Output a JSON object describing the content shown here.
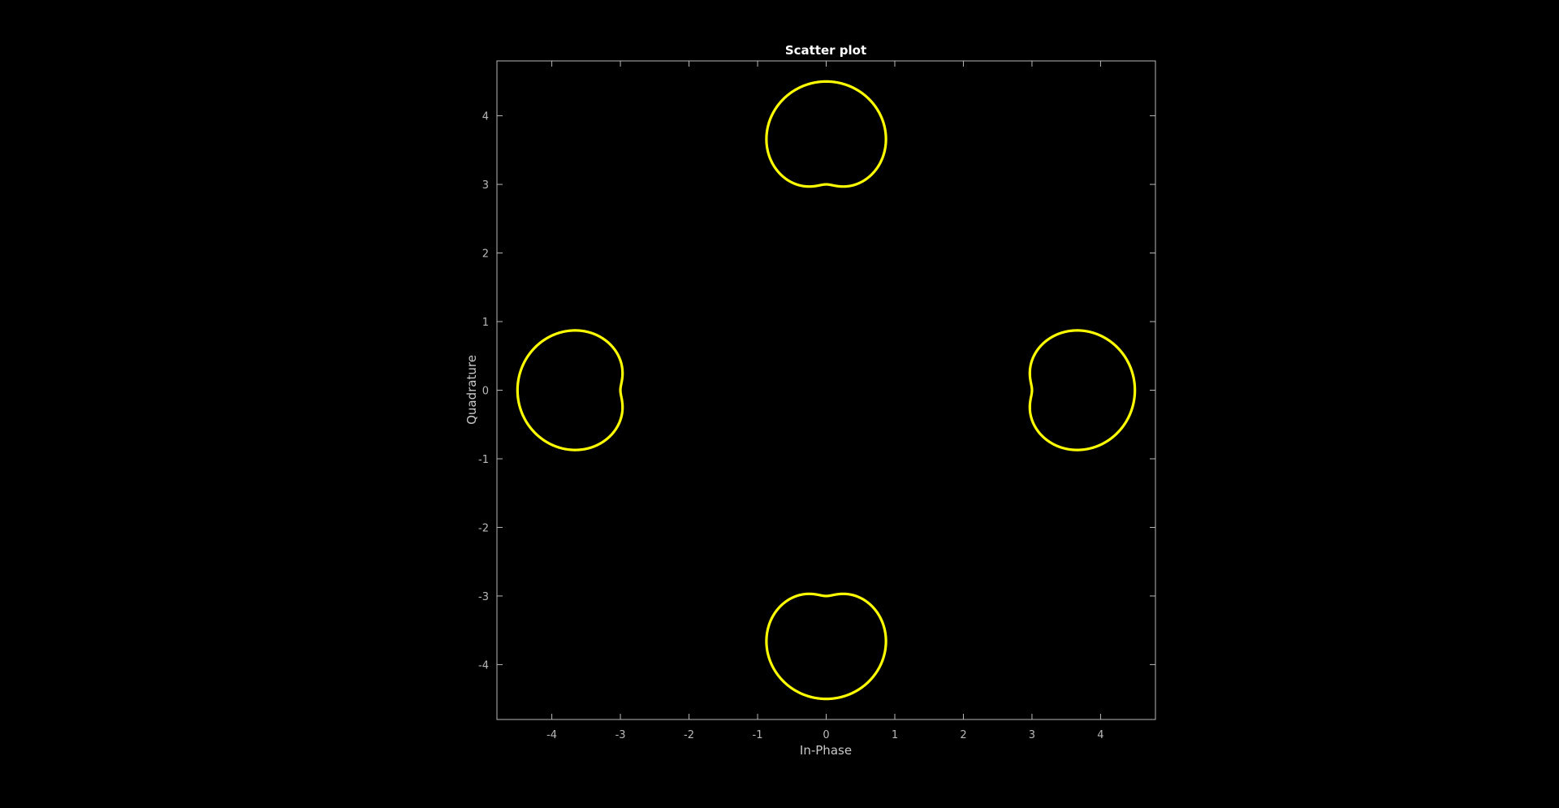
{
  "chart_data": {
    "type": "scatter",
    "title": "Scatter plot",
    "xlabel": "In-Phase",
    "ylabel": "Quadrature",
    "xlim": [
      -4.8,
      4.8
    ],
    "ylim": [
      -4.8,
      4.8
    ],
    "xticks": [
      -4,
      -3,
      -2,
      -1,
      0,
      1,
      2,
      3,
      4
    ],
    "yticks": [
      -4,
      -3,
      -2,
      -1,
      0,
      1,
      2,
      3,
      4
    ],
    "grid": false,
    "background_color": "#000000",
    "axes_color": "#b9b9b9",
    "series": [
      {
        "marker_color": "#ffff00",
        "shape": "limacon trace around constellation point",
        "clusters": [
          {
            "center": [
              3.5,
              0
            ],
            "outer_extent": [
              4.5,
              0
            ],
            "inner_loop_extent": [
              2.9,
              3.1
            ]
          },
          {
            "center": [
              0,
              3.5
            ],
            "outer_extent": [
              0,
              4.5
            ],
            "inner_loop_extent": [
              2.9,
              3.1
            ]
          },
          {
            "center": [
              -3.5,
              0
            ],
            "outer_extent": [
              -4.5,
              0
            ],
            "inner_loop_extent": [
              -3.1,
              -2.9
            ]
          },
          {
            "center": [
              0,
              -3.5
            ],
            "outer_extent": [
              0,
              -4.5
            ],
            "inner_loop_extent": [
              -3.1,
              -2.9
            ]
          }
        ]
      }
    ]
  }
}
